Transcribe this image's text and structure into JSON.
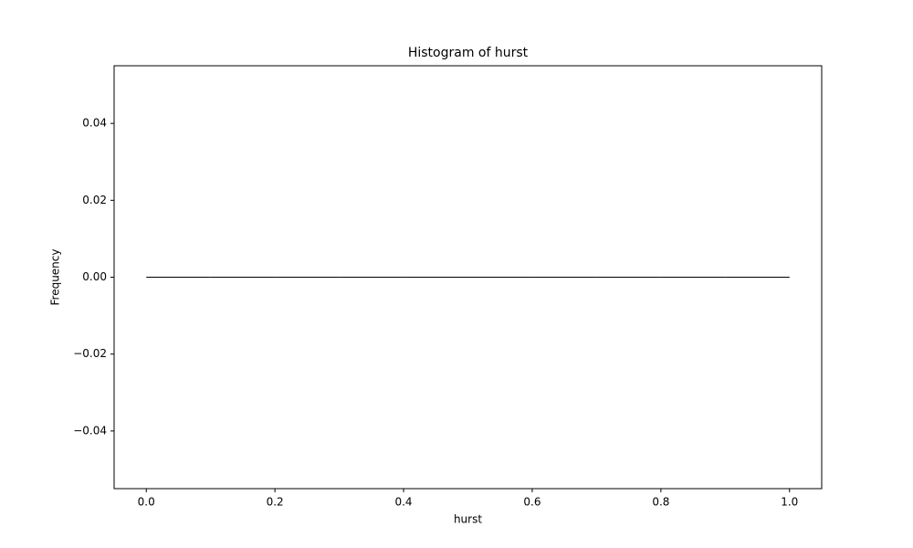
{
  "chart_data": {
    "type": "histogram",
    "title": "Histogram of hurst",
    "x_label": "hurst",
    "y_label": "Frequency",
    "bins": [
      0,
      0.1,
      0.2,
      0.3,
      0.4,
      0.5,
      0.6,
      0.7,
      0.8,
      0.9,
      1
    ],
    "values": [
      0,
      0,
      0,
      0,
      0,
      0,
      0,
      0,
      0,
      0
    ],
    "color": "#1f77b4",
    "edgecolor": "#000000",
    "xlim": [
      -0.05,
      1.05
    ],
    "xticks": [
      {
        "value": 0,
        "label": "0.0"
      },
      0.2,
      0.4,
      0.6,
      0.8,
      {
        "value": 1,
        "label": "1.0"
      }
    ],
    "ylim": [
      -0.055,
      0.055
    ],
    "yticks": [
      {
        "value": -0.04,
        "label": "−0.04"
      },
      {
        "value": -0.02,
        "label": "−0.02"
      },
      {
        "value": 0,
        "label": "0.00"
      },
      0.02,
      0.04
    ],
    "grid": false
  }
}
